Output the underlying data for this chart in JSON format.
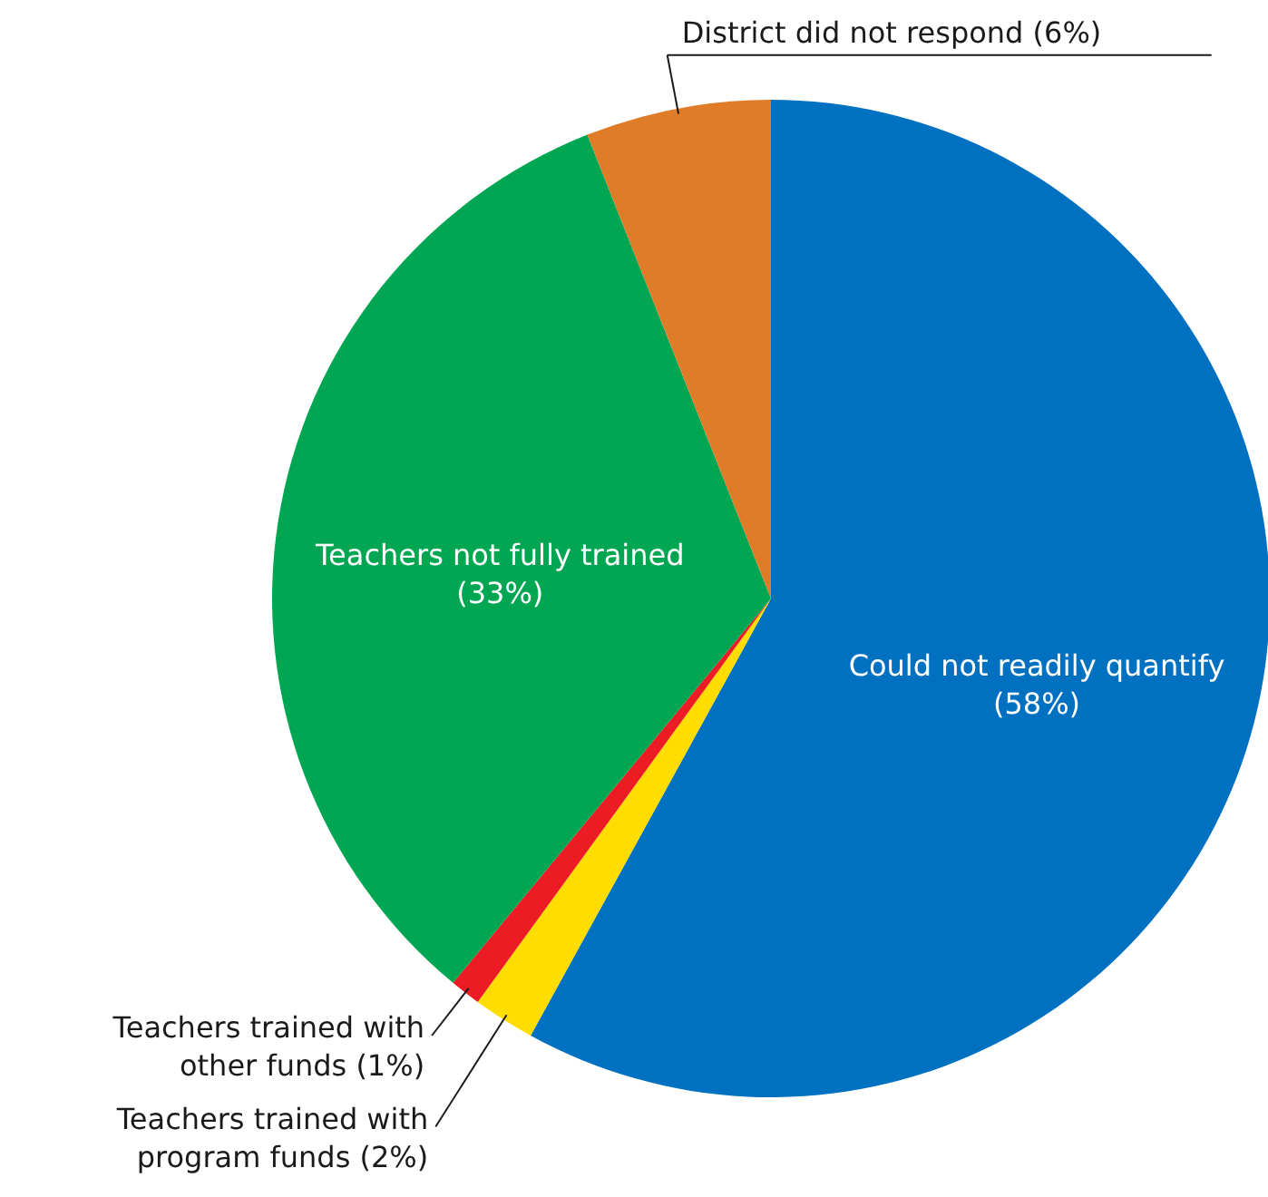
{
  "chart_data": {
    "type": "pie",
    "categories": [
      "Could not readily quantify",
      "Teachers trained with program funds",
      "Teachers trained with other funds",
      "Teachers not fully trained",
      "District did not respond"
    ],
    "values": [
      58,
      2,
      1,
      33,
      6
    ],
    "value_labels": [
      "(58%)",
      "(2%)",
      "(1%)",
      "(33%)",
      "(6%)"
    ],
    "colors": [
      "#0070c0",
      "#ffdd00",
      "#ed1c24",
      "#00a651",
      "#e07b28"
    ]
  }
}
